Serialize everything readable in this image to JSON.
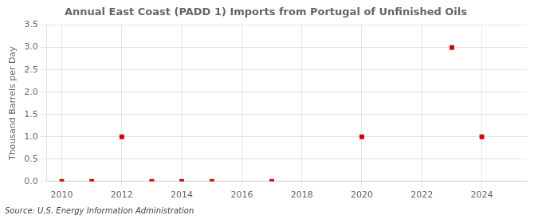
{
  "chart_data": {
    "type": "scatter",
    "title": "Annual East Coast (PADD 1) Imports from Portugal of Unfinished Oils",
    "y_label": "Thousand Barrels per Day",
    "annotations": [
      "Source: U.S. Energy Information Administration"
    ],
    "x": [
      2010,
      2011,
      2012,
      2013,
      2014,
      2015,
      2017,
      2020,
      2023,
      2024
    ],
    "values": [
      0.0,
      0.0,
      1.0,
      0.0,
      0.0,
      0.0,
      0.0,
      1.0,
      3.0,
      1.0
    ],
    "color": "#cc0000",
    "marker": "square",
    "xlim": [
      2009.5,
      2025.5
    ],
    "xticks": [
      2010,
      2012,
      2014,
      2016,
      2018,
      2020,
      2022,
      2024
    ],
    "ylim": [
      0,
      3.5
    ],
    "yticks": [
      {
        "value": 0,
        "label": "0.0"
      },
      0.5,
      {
        "value": 1,
        "label": "1.0"
      },
      1.5,
      {
        "value": 2,
        "label": "2.0"
      },
      2.5,
      {
        "value": 3,
        "label": "3.0"
      },
      3.5
    ],
    "grid": true
  }
}
